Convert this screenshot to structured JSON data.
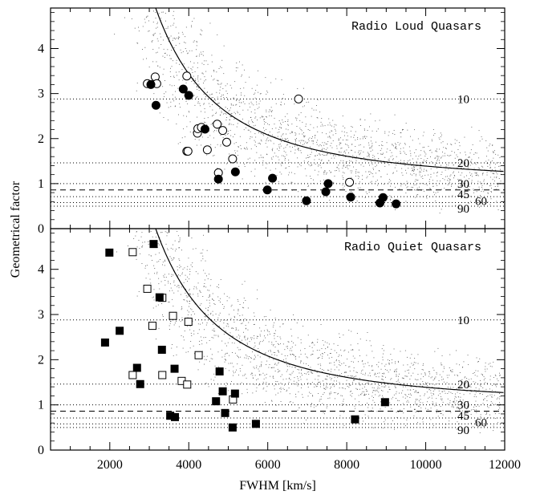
{
  "chart_data": {
    "type": "scatter",
    "xlabel": "FWHM [km/s]",
    "ylabel": "Geometrical factor",
    "xlim": [
      500,
      12000
    ],
    "x_ticks": [
      "2000",
      "4000",
      "6000",
      "8000",
      "10000",
      "12000"
    ],
    "shared_x": true,
    "colors": {
      "ink": "#000000",
      "cloud": "#555555"
    },
    "panels": [
      {
        "label": "Radio Loud Quasars",
        "ylim": [
          0,
          4.9
        ],
        "y_ticks": [
          "0",
          "1",
          "2",
          "3",
          "4"
        ],
        "grid": false,
        "reference_curve": {
          "style": "solid",
          "x_range": [
            1250,
            12000
          ],
          "formula": "y = 1.0 + 3.9e7 / FWHM^2"
        },
        "cloud": {
          "style": "fine dots",
          "count": 2400,
          "seed": 11
        },
        "dashed_line": {
          "y": 0.86
        },
        "angle_lines": [
          {
            "label": "10",
            "y": 2.88
          },
          {
            "label": "20",
            "y": 1.46
          },
          {
            "label": "30",
            "y": 1.0
          },
          {
            "label": "45",
            "y": 0.71
          },
          {
            "label": "60",
            "y": 0.58
          },
          {
            "label": "90",
            "y": 0.5
          }
        ],
        "series": [
          {
            "marker": "open-circle",
            "points": [
              [
                2950,
                3.22
              ],
              [
                3150,
                3.37
              ],
              [
                3190,
                3.22
              ],
              [
                3950,
                3.39
              ],
              [
                3950,
                1.72
              ],
              [
                3980,
                1.72
              ],
              [
                4220,
                2.12
              ],
              [
                4230,
                2.22
              ],
              [
                4320,
                2.25
              ],
              [
                4470,
                1.75
              ],
              [
                4720,
                2.32
              ],
              [
                4750,
                1.24
              ],
              [
                4860,
                2.18
              ],
              [
                4960,
                1.92
              ],
              [
                5110,
                1.55
              ],
              [
                6780,
                2.88
              ],
              [
                8070,
                1.03
              ]
            ]
          },
          {
            "marker": "filled-circle",
            "points": [
              [
                3040,
                3.2
              ],
              [
                3170,
                2.74
              ],
              [
                3860,
                3.1
              ],
              [
                4000,
                2.96
              ],
              [
                4410,
                2.21
              ],
              [
                4750,
                1.1
              ],
              [
                5180,
                1.26
              ],
              [
                5990,
                0.86
              ],
              [
                6120,
                1.12
              ],
              [
                6980,
                0.62
              ],
              [
                7470,
                0.82
              ],
              [
                7530,
                1.0
              ],
              [
                8100,
                0.7
              ],
              [
                8840,
                0.57
              ],
              [
                8920,
                0.69
              ],
              [
                9250,
                0.55
              ]
            ]
          }
        ]
      },
      {
        "label": "Radio Quiet Quasars",
        "ylim": [
          0,
          4.9
        ],
        "y_ticks": [
          "0",
          "1",
          "2",
          "3",
          "4"
        ],
        "grid": false,
        "reference_curve": {
          "style": "solid",
          "x_range": [
            1250,
            12000
          ],
          "formula": "y = 1.0 + 3.9e7 / FWHM^2"
        },
        "cloud": {
          "style": "fine dots",
          "count": 2400,
          "seed": 23
        },
        "dashed_line": {
          "y": 0.86
        },
        "angle_lines": [
          {
            "label": "10",
            "y": 2.88
          },
          {
            "label": "20",
            "y": 1.46
          },
          {
            "label": "30",
            "y": 1.0
          },
          {
            "label": "45",
            "y": 0.71
          },
          {
            "label": "60",
            "y": 0.58
          },
          {
            "label": "90",
            "y": 0.5
          }
        ],
        "series": [
          {
            "marker": "open-square",
            "points": [
              [
                2580,
                4.38
              ],
              [
                2580,
                1.66
              ],
              [
                2950,
                3.57
              ],
              [
                3080,
                2.75
              ],
              [
                3330,
                3.37
              ],
              [
                3330,
                1.66
              ],
              [
                3600,
                2.97
              ],
              [
                3820,
                1.53
              ],
              [
                3960,
                1.45
              ],
              [
                3990,
                2.84
              ],
              [
                4250,
                2.1
              ],
              [
                5120,
                1.12
              ]
            ]
          },
          {
            "marker": "filled-square",
            "points": [
              [
                1880,
                2.38
              ],
              [
                1990,
                4.37
              ],
              [
                2250,
                2.64
              ],
              [
                2690,
                1.82
              ],
              [
                2770,
                1.46
              ],
              [
                3110,
                4.56
              ],
              [
                3260,
                3.38
              ],
              [
                3320,
                2.22
              ],
              [
                3530,
                0.76
              ],
              [
                3640,
                1.8
              ],
              [
                3650,
                0.73
              ],
              [
                4690,
                1.08
              ],
              [
                4780,
                1.74
              ],
              [
                4860,
                1.3
              ],
              [
                4920,
                0.82
              ],
              [
                5110,
                0.5
              ],
              [
                5170,
                1.25
              ],
              [
                5700,
                0.58
              ],
              [
                8210,
                0.68
              ],
              [
                8970,
                1.06
              ]
            ]
          }
        ]
      }
    ]
  }
}
